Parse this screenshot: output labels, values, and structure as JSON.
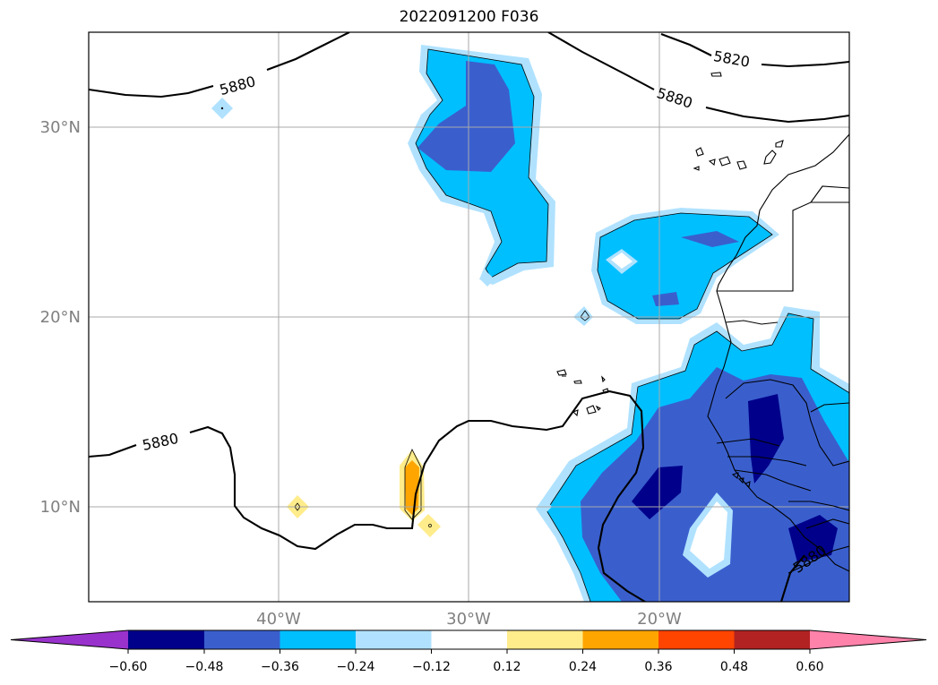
{
  "title": "2022091200 F036",
  "map": {
    "lon_range": [
      -50,
      -10
    ],
    "lat_range": [
      5,
      35
    ],
    "lon_tick_labels": [
      "40°W",
      "30°W",
      "20°W"
    ],
    "lat_tick_labels": [
      "30°N",
      "20°N",
      "10°N"
    ],
    "grid": true,
    "contour_labels": [
      "5880",
      "5820",
      "5880",
      "5880",
      "5880"
    ]
  },
  "colorbar": {
    "ticks": [
      "−0.60",
      "−0.48",
      "−0.36",
      "−0.24",
      "−0.12",
      "0.12",
      "0.24",
      "0.36",
      "0.48",
      "0.60"
    ],
    "colors": [
      "#9932cc",
      "#00008b",
      "#3a5fcd",
      "#00bfff",
      "#b0e2ff",
      "#ffffff",
      "#ffec8b",
      "#ffa500",
      "#ff4500",
      "#b22222",
      "#ff82ab"
    ],
    "extend": "both"
  }
}
